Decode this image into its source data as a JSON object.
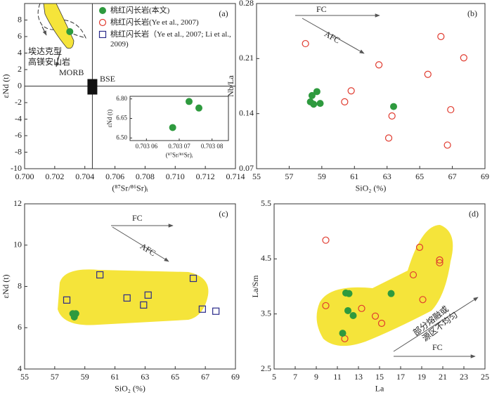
{
  "chart_data": [
    {
      "type": "scatter",
      "label": "(a)",
      "xlabel": "(⁸⁷Sr/⁸⁶Sr)ᵢ",
      "ylabel": "εNd (t)",
      "xlim": [
        0.7,
        0.714
      ],
      "ylim": [
        -10,
        10
      ],
      "xticks": [
        {
          "value": 0.7,
          "label": "0.700"
        },
        0.702,
        0.704,
        0.706,
        0.708,
        {
          "value": 0.71,
          "label": "0.710"
        },
        0.712,
        0.714
      ],
      "yticks": [
        -10,
        -8,
        -6,
        -4,
        -2,
        0,
        2,
        4,
        6,
        8
      ],
      "legend": true,
      "reference_lines": [
        {
          "axis": "x",
          "value": 0.7045
        },
        {
          "axis": "y",
          "value": 0
        }
      ],
      "annotations": [
        "MORB",
        "BSE",
        "埃达克型",
        "高镁安山岩"
      ],
      "series": [
        {
          "name": "桃红闪长岩(本文)",
          "color": "#2e9a3e",
          "marker": "filled-circle",
          "x": [
            0.703
          ],
          "values": [
            6.6
          ]
        },
        {
          "name": "桃红闪长岩(Ye et al., 2007)",
          "color": "#e03a2e",
          "marker": "open-circle",
          "x": [],
          "values": []
        },
        {
          "name": "桃红闪长岩（Ye et al., 2007; Li et al., 2009)",
          "color": "#2a2a8a",
          "marker": "open-square",
          "x": [],
          "values": []
        }
      ]
    },
    {
      "type": "scatter",
      "xlabel": "(⁸⁷Sr/⁸⁶Sr)ᵢ",
      "ylabel": "εNd (t)",
      "xlim": [
        0.703055,
        0.703085
      ],
      "ylim": [
        6.48,
        6.82
      ],
      "xticks": [
        {
          "value": 0.70306,
          "label": "0.703 06"
        },
        {
          "value": 0.70307,
          "label": "0.703 07"
        },
        {
          "value": 0.70308,
          "label": "0.703 08"
        }
      ],
      "yticks": [
        {
          "value": 6.5,
          "label": "6.50"
        },
        6.65,
        {
          "value": 6.8,
          "label": "6.80"
        }
      ],
      "series": [
        {
          "name": "桃红闪长岩(本文)",
          "color": "#2e9a3e",
          "marker": "filled-circle",
          "x": [
            0.703068,
            0.703073,
            0.703076
          ],
          "values": [
            6.58,
            6.78,
            6.73
          ]
        }
      ]
    },
    {
      "type": "scatter",
      "label": "(b)",
      "xlabel": "SiO₂ (%)",
      "ylabel": "Nb/La",
      "xlim": [
        55,
        69
      ],
      "ylim": [
        0.07,
        0.28
      ],
      "xticks": [
        55,
        57,
        59,
        61,
        63,
        65,
        67,
        69
      ],
      "yticks": [
        0.07,
        0.14,
        0.21,
        0.28
      ],
      "annotations": [
        "FC",
        "AFC"
      ],
      "series": [
        {
          "name": "桃红闪长岩(Ye et al., 2007)",
          "color": "#e03a2e",
          "marker": "open-circle",
          "x": [
            58.0,
            60.4,
            60.8,
            62.5,
            63.3,
            63.1,
            65.5,
            66.3,
            67.7,
            66.9,
            66.7
          ],
          "values": [
            0.229,
            0.155,
            0.169,
            0.202,
            0.137,
            0.109,
            0.19,
            0.238,
            0.211,
            0.145,
            0.1
          ]
        },
        {
          "name": "桃红闪长岩(本文)",
          "color": "#2e9a3e",
          "marker": "filled-circle",
          "x": [
            58.4,
            58.7,
            58.3,
            58.5,
            58.9,
            63.4
          ],
          "values": [
            0.163,
            0.168,
            0.155,
            0.152,
            0.153,
            0.149
          ]
        }
      ]
    },
    {
      "type": "scatter",
      "label": "(c)",
      "xlabel": "SiO₂ (%)",
      "ylabel": "εNd (t)",
      "xlim": [
        55,
        69
      ],
      "ylim": [
        4,
        12
      ],
      "xticks": [
        55,
        57,
        59,
        61,
        63,
        65,
        67,
        69
      ],
      "yticks": [
        4,
        6,
        8,
        10,
        12
      ],
      "annotations": [
        "FC",
        "AFC"
      ],
      "series": [
        {
          "name": "桃红闪长岩（Ye et al., 2007; Li et al., 2009)",
          "color": "#2a2a8a",
          "marker": "open-square",
          "x": [
            57.8,
            60.0,
            61.8,
            62.9,
            63.2,
            66.2,
            66.8,
            67.7
          ],
          "values": [
            7.34,
            8.56,
            7.44,
            7.1,
            7.58,
            8.39,
            6.9,
            6.8
          ]
        },
        {
          "name": "桃红闪长岩(本文)",
          "color": "#2e9a3e",
          "marker": "filled-circle",
          "x": [
            58.2,
            58.4,
            58.3
          ],
          "values": [
            6.68,
            6.68,
            6.52
          ]
        }
      ]
    },
    {
      "type": "scatter",
      "label": "(d)",
      "xlabel": "La",
      "ylabel": "La/Sm",
      "xlim": [
        5,
        25
      ],
      "ylim": [
        2.5,
        5.5
      ],
      "xticks": [
        5,
        7,
        9,
        11,
        13,
        15,
        17,
        19,
        21,
        23,
        25
      ],
      "yticks": [
        2.5,
        3.5,
        4.5,
        5.5
      ],
      "annotations": [
        "FC",
        "部分熔融或",
        "源区不均匀"
      ],
      "series": [
        {
          "name": "桃红闪长岩(Ye et al., 2007)",
          "color": "#e03a2e",
          "marker": "open-circle",
          "x": [
            9.9,
            9.9,
            11.7,
            13.3,
            14.6,
            15.2,
            18.2,
            18.8,
            19.1,
            20.7,
            20.7
          ],
          "values": [
            4.84,
            3.65,
            3.05,
            3.6,
            3.46,
            3.33,
            4.21,
            4.71,
            3.76,
            4.43,
            4.48
          ]
        },
        {
          "name": "桃红闪长岩(本文)",
          "color": "#2e9a3e",
          "marker": "filled-circle",
          "x": [
            11.8,
            12.1,
            12.0,
            12.5,
            11.5,
            16.1
          ],
          "values": [
            3.88,
            3.87,
            3.56,
            3.47,
            3.15,
            3.87
          ]
        }
      ]
    }
  ]
}
